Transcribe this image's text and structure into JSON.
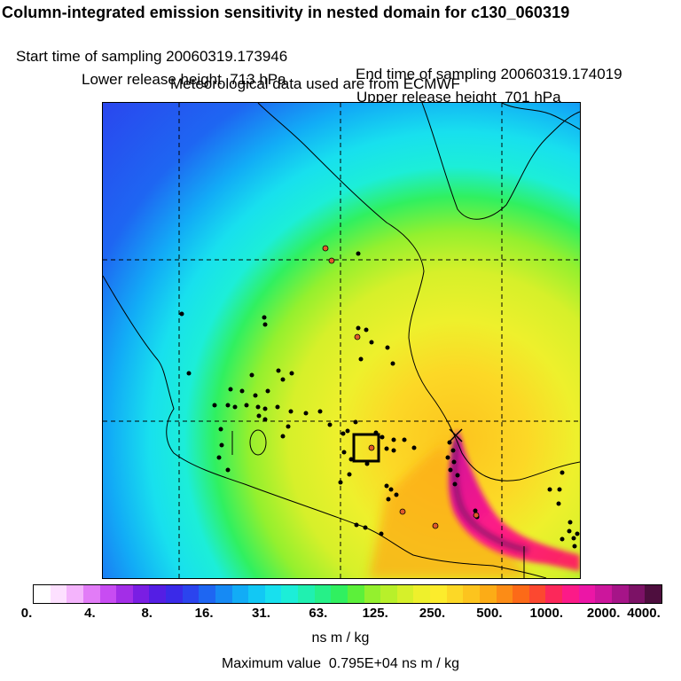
{
  "header": {
    "title": "Column-integrated emission sensitivity in nested domain for c130_060319",
    "start_time": "Start time of sampling 20060319.173946",
    "end_time": "End time of sampling 20060319.174019",
    "lower_release": "Lower release height  713 hPa",
    "upper_release": "Upper release height  701 hPa",
    "met_data": "Meteorological data used are from ECMWF"
  },
  "colorbar": {
    "tick_labels": [
      "0.",
      "4.",
      "8.",
      "16.",
      "31.",
      "63.",
      "125.",
      "250.",
      "500.",
      "1000.",
      "2000.",
      "4000."
    ],
    "tick_values": [
      0,
      4,
      8,
      16,
      31,
      63,
      125,
      250,
      500,
      1000,
      2000,
      4000
    ],
    "colors": [
      "#ffffff",
      "#fde0ff",
      "#f4b4fc",
      "#e27cf7",
      "#c84cf2",
      "#a32ee7",
      "#7a1ee3",
      "#541ee4",
      "#3a2ae8",
      "#2b44ee",
      "#1e66f2",
      "#168af4",
      "#12acf6",
      "#12c8f4",
      "#18e0ee",
      "#1ceed8",
      "#20f0b0",
      "#26f088",
      "#30f060",
      "#5cf03a",
      "#94f02e",
      "#b8f02a",
      "#d6f02a",
      "#eef02c",
      "#fcec2c",
      "#fcd826",
      "#fcc41e",
      "#fcac16",
      "#fc8c16",
      "#fc6a18",
      "#fc4830",
      "#fc285a",
      "#fc1a88",
      "#ec16a6",
      "#cc169c",
      "#a61488",
      "#7c1266",
      "#4e0e3e"
    ],
    "units": "ns m / kg",
    "max_value": "Maximum value  0.795E+04 ns m / kg"
  },
  "map": {
    "release_marker": "x-marker",
    "color_scale": {
      "low": "#2b44ee",
      "mid": "#d6f02a",
      "high": "#fc1a88",
      "peak": "#7c1266"
    }
  }
}
